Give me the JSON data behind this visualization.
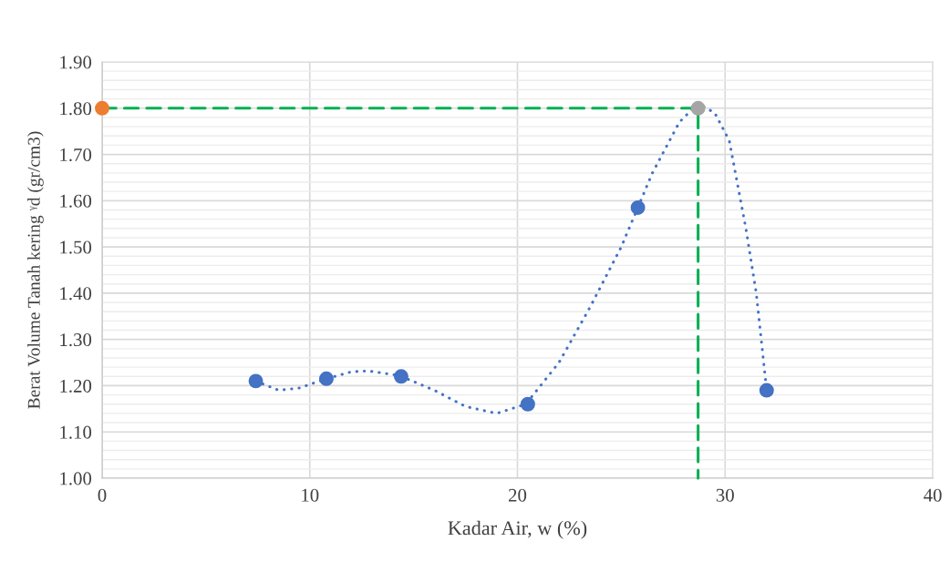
{
  "chart_data": {
    "type": "scatter",
    "xlabel": "Kadar Air, w (%)",
    "ylabel": "Berat Volume Tanah kering ᵞd (gr/cm3)",
    "xlim": [
      0,
      40
    ],
    "xticks": [
      0,
      10,
      20,
      30,
      40
    ],
    "ylim": [
      1.0,
      1.9
    ],
    "yticks": [
      {
        "value": 1.0,
        "label": "1.00"
      },
      {
        "value": 1.1,
        "label": "1.10"
      },
      {
        "value": 1.2,
        "label": "1.20"
      },
      {
        "value": 1.3,
        "label": "1.30"
      },
      {
        "value": 1.4,
        "label": "1.40"
      },
      {
        "value": 1.5,
        "label": "1.50"
      },
      {
        "value": 1.6,
        "label": "1.60"
      },
      {
        "value": 1.7,
        "label": "1.70"
      },
      {
        "value": 1.8,
        "label": "1.80"
      },
      {
        "value": 1.9,
        "label": "1.90"
      }
    ],
    "grid": true,
    "legend": false,
    "series": [
      {
        "type": "line",
        "color": "#4472c4",
        "line_style": "dotted",
        "marker": "none",
        "x": [
          7.4,
          8.5,
          9.5,
          10.8,
          12,
          12.8,
          14.3,
          16,
          17.5,
          19,
          20.4,
          22,
          23.5,
          25,
          26.5,
          27.8,
          28.7,
          29.5,
          30.2,
          31,
          31.5,
          32
        ],
        "values": [
          1.21,
          1.19,
          1.195,
          1.215,
          1.23,
          1.232,
          1.222,
          1.19,
          1.155,
          1.14,
          1.16,
          1.25,
          1.37,
          1.5,
          1.66,
          1.77,
          1.81,
          1.79,
          1.73,
          1.54,
          1.4,
          1.19
        ]
      },
      {
        "type": "line",
        "color": "#00b050",
        "line_style": "dashed",
        "marker": "none",
        "x": [
          0,
          28.7,
          28.7
        ],
        "values": [
          1.8,
          1.8,
          1.0
        ]
      },
      {
        "color": "#4472c4",
        "marker": "circle",
        "x": [
          7.4,
          10.8,
          14.4,
          20.5,
          25.8,
          32.0
        ],
        "values": [
          1.21,
          1.215,
          1.22,
          1.16,
          1.585,
          1.19
        ]
      },
      {
        "color": "#ed7d31",
        "marker": "circle",
        "x": [
          0
        ],
        "values": [
          1.8
        ]
      },
      {
        "color": "#a5a5a5",
        "marker": "circle",
        "x": [
          28.7
        ],
        "values": [
          1.8
        ]
      }
    ]
  }
}
